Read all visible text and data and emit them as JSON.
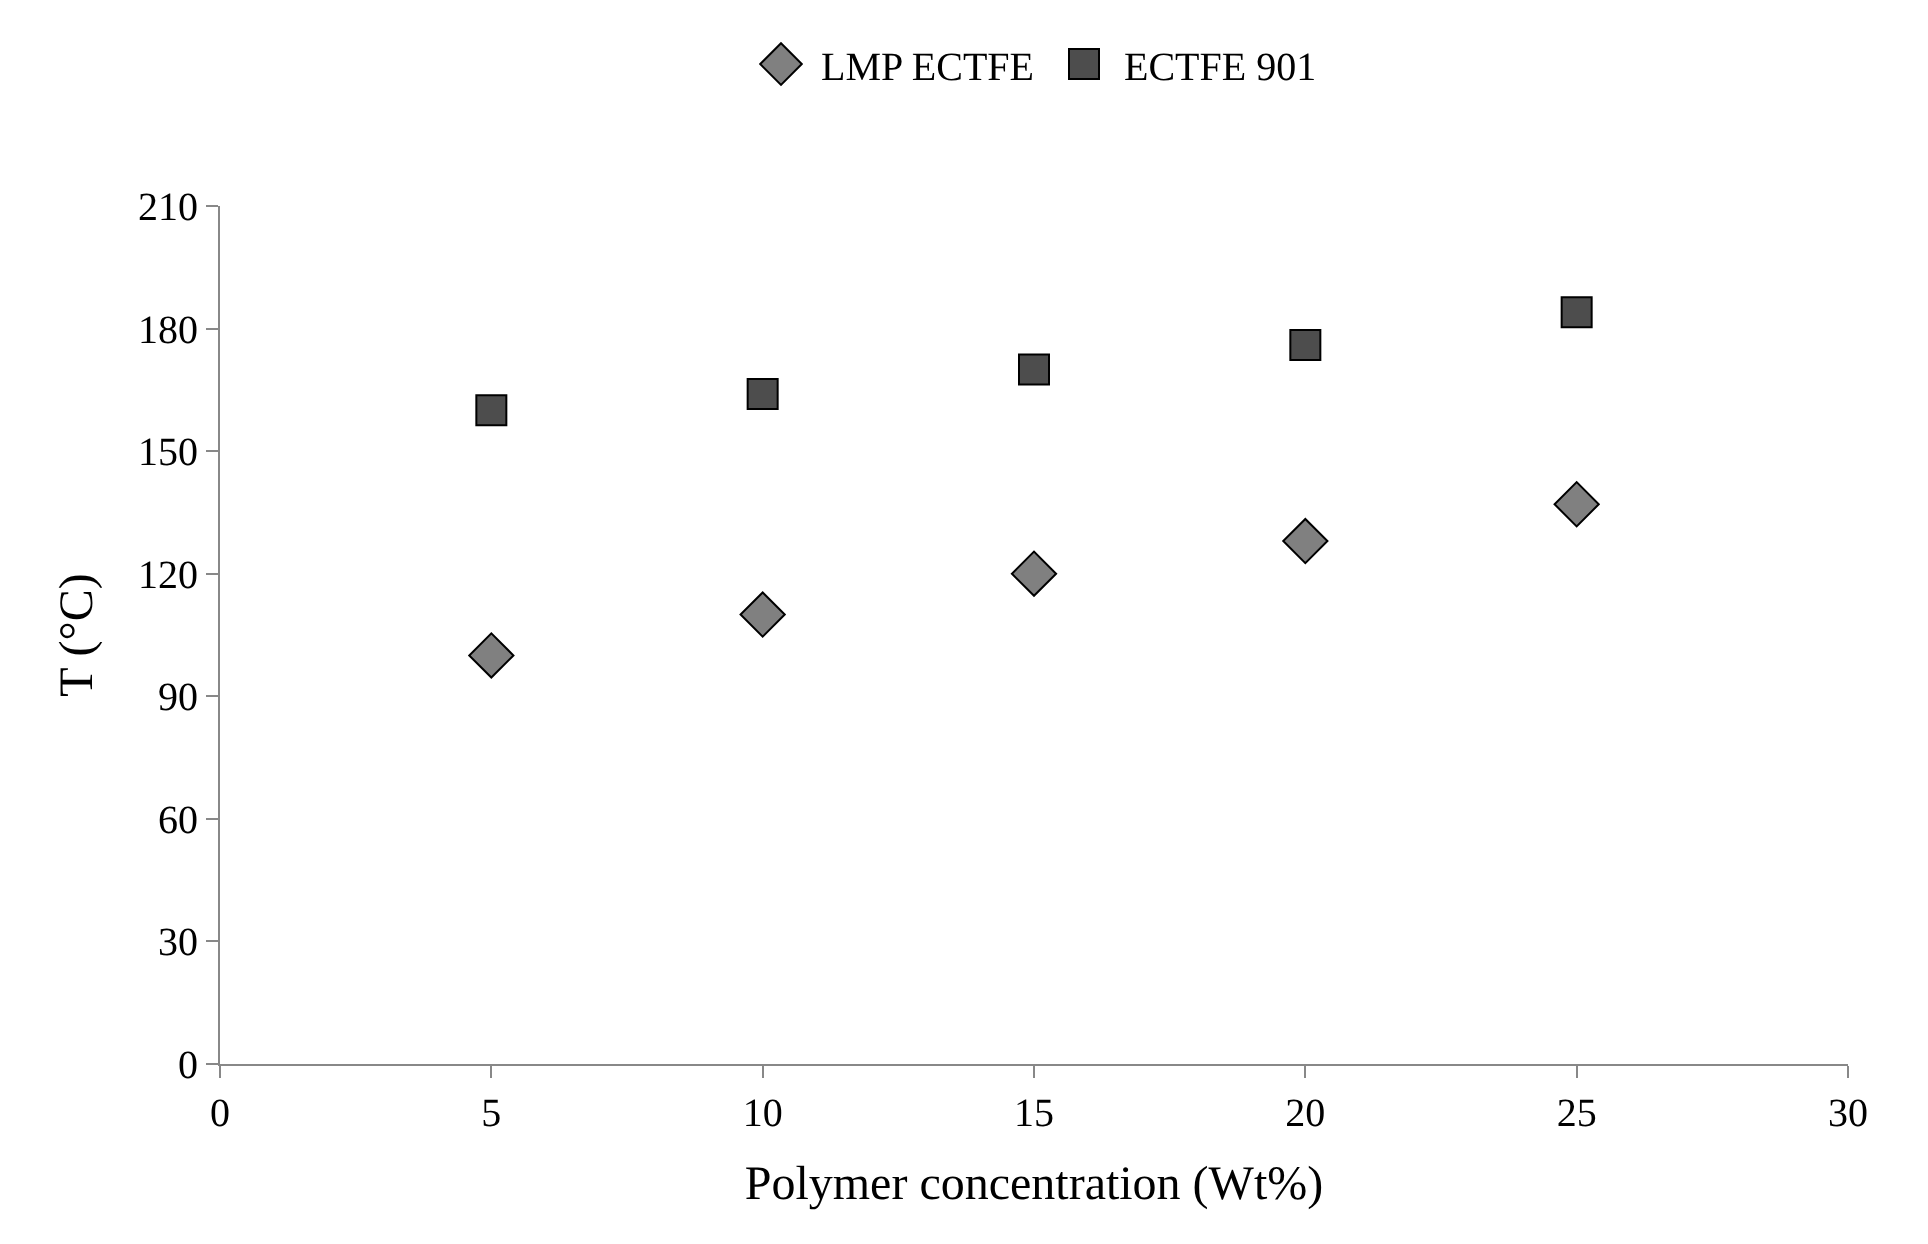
{
  "chart_data": {
    "type": "scatter",
    "xlabel": "Polymer concentration (Wt%)",
    "ylabel": "T (°C)",
    "xlim": [
      0,
      30
    ],
    "xticks": [
      0,
      5,
      10,
      15,
      20,
      25,
      30
    ],
    "ylim": [
      0,
      210
    ],
    "yticks": [
      0,
      30,
      60,
      90,
      120,
      150,
      180,
      210
    ],
    "legend": "top",
    "series": [
      {
        "name": "LMP ECTFE",
        "color": "#808080",
        "marker": "diamond",
        "x": [
          5,
          10,
          15,
          20,
          25
        ],
        "values": [
          100,
          110,
          120,
          128,
          137
        ]
      },
      {
        "name": "ECTFE 901",
        "color": "#4d4d4d",
        "marker": "square",
        "x": [
          5,
          10,
          15,
          20,
          25
        ],
        "values": [
          160,
          164,
          170,
          176,
          184
        ]
      }
    ]
  }
}
